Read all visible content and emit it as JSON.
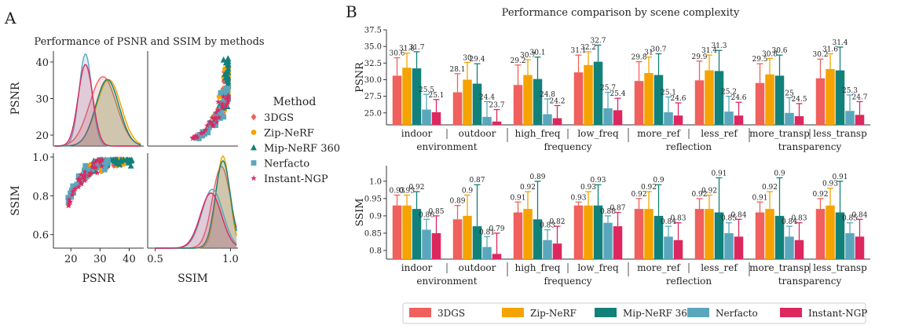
{
  "panel_labels": {
    "a": "A",
    "b": "B"
  },
  "left_panel": {
    "title": "Performance of PSNR and SSIM by methods",
    "legend_title": "Method"
  },
  "right_panel": {
    "title": "Performance comparison by scene complexity"
  },
  "methods": [
    {
      "name": "3DGS",
      "color": "#f0605c",
      "marker": "diamond"
    },
    {
      "name": "Zip-NeRF",
      "color": "#f5a300",
      "marker": "circle"
    },
    {
      "name": "Mip-NeRF 360",
      "color": "#11817a",
      "marker": "triangle"
    },
    {
      "name": "Nerfacto",
      "color": "#5aa7bd",
      "marker": "square"
    },
    {
      "name": "Instant-NGP",
      "color": "#dc285f",
      "marker": "star"
    }
  ],
  "chart_data": [
    {
      "type": "pairplot",
      "id": "A",
      "title": "Performance of PSNR and SSIM by methods",
      "variables": [
        "PSNR",
        "SSIM"
      ],
      "xlim": {
        "PSNR": [
          14,
          45
        ],
        "SSIM": [
          0.45,
          1.05
        ]
      },
      "ticks": {
        "PSNR": [
          20,
          30,
          40
        ],
        "SSIM": [
          0.6,
          0.8,
          1.0
        ],
        "SSIM_x": [
          0.5,
          1.0
        ]
      },
      "tick_labels": {
        "PSNR": [
          "20",
          "30",
          "40"
        ],
        "SSIM": [
          "0.6",
          "0.8",
          "1.0"
        ],
        "SSIM_x": [
          "0.5",
          "1.0"
        ]
      },
      "psnr_density_modes": {
        "3DGS": 31,
        "Zip-NeRF": 33,
        "Mip-NeRF 360": 32.5,
        "Nerfacto": 25,
        "Instant-NGP": 25
      },
      "ssim_density_modes": {
        "3DGS": 0.94,
        "Zip-NeRF": 0.95,
        "Mip-NeRF 360": 0.95,
        "Nerfacto": 0.88,
        "Instant-NGP": 0.87
      },
      "psnr_range": [
        19,
        41
      ],
      "ssim_range": [
        0.56,
        0.99
      ],
      "legend_title": "Method"
    },
    {
      "type": "bar",
      "id": "B-top",
      "ylabel": "PSNR",
      "ylim": [
        23.2,
        37.5
      ],
      "yticks": [
        25.0,
        27.5,
        30.0,
        32.5,
        35.0,
        37.5
      ],
      "ytick_labels": [
        "25.0",
        "27.5",
        "30.0",
        "32.5",
        "35.0",
        "37.5"
      ],
      "categories": [
        "indoor",
        "outdoor",
        "high_freq",
        "low_freq",
        "more_ref",
        "less_ref",
        "more_transp",
        "less_transp"
      ],
      "groups": [
        "environment",
        "frequency",
        "reflection",
        "transparency"
      ],
      "series": [
        {
          "name": "3DGS",
          "values": [
            30.6,
            28.1,
            29.2,
            31.1,
            29.8,
            29.9,
            29.5,
            30.2
          ],
          "errors": [
            2.7,
            2.8,
            3.0,
            2.6,
            2.9,
            2.9,
            2.9,
            2.9
          ]
        },
        {
          "name": "Zip-NeRF",
          "values": [
            31.8,
            30,
            30.7,
            32.2,
            31,
            31.4,
            30.8,
            31.6
          ],
          "errors": [
            2.2,
            2.6,
            2.3,
            2.0,
            2.4,
            2.3,
            2.4,
            2.3
          ]
        },
        {
          "name": "Mip-NeRF 360",
          "values": [
            31.7,
            29.4,
            30.1,
            32.7,
            30.7,
            31.3,
            30.6,
            31.4
          ],
          "errors": [
            2.5,
            3.0,
            3.3,
            2.5,
            3.2,
            3.1,
            3.1,
            3.5
          ]
        },
        {
          "name": "Nerfacto",
          "values": [
            25.5,
            24.4,
            24.8,
            25.7,
            25.1,
            25.2,
            25,
            25.3
          ],
          "errors": [
            2.3,
            2.3,
            2.3,
            2.4,
            2.3,
            2.3,
            2.3,
            2.4
          ]
        },
        {
          "name": "Instant-NGP",
          "values": [
            25.1,
            23.7,
            24.2,
            25.4,
            24.6,
            24.6,
            24.5,
            24.7
          ],
          "errors": [
            1.9,
            1.8,
            1.9,
            1.8,
            1.9,
            2.0,
            1.9,
            2.0
          ]
        }
      ],
      "value_labels": [
        [
          "30.6",
          "28.1",
          "29.2",
          "31.1",
          "29.8",
          "29.9",
          "29.5",
          "30.2"
        ],
        [
          "31.8",
          "30",
          "30.7",
          "32.2",
          "31",
          "31.4",
          "30.8",
          "31.6"
        ],
        [
          "31.7",
          "29.4",
          "30.1",
          "32.7",
          "30.7",
          "31.3",
          "30.6",
          "31.4"
        ],
        [
          "25.5",
          "24.4",
          "24.8",
          "25.7",
          "25.1",
          "25.2",
          "25",
          "25.3"
        ],
        [
          "25.1",
          "23.7",
          "24.2",
          "25.4",
          "24.6",
          "24.6",
          "24.5",
          "24.7"
        ]
      ]
    },
    {
      "type": "bar",
      "id": "B-bottom",
      "ylabel": "SSIM",
      "ylim": [
        0.775,
        1.045
      ],
      "yticks": [
        0.8,
        0.85,
        0.9,
        0.95,
        1.0
      ],
      "ytick_labels": [
        "0.8",
        "0.85",
        "0.9",
        "0.95",
        "1.0"
      ],
      "categories": [
        "indoor",
        "outdoor",
        "high_freq",
        "low_freq",
        "more_ref",
        "less_ref",
        "more_transp",
        "less_transp"
      ],
      "groups": [
        "environment",
        "frequency",
        "reflection",
        "transparency"
      ],
      "series": [
        {
          "name": "3DGS",
          "values": [
            0.93,
            0.89,
            0.91,
            0.93,
            0.92,
            0.92,
            0.91,
            0.92
          ],
          "errors": [
            0.03,
            0.04,
            0.03,
            0.01,
            0.03,
            0.03,
            0.03,
            0.03
          ]
        },
        {
          "name": "Zip-NeRF",
          "values": [
            0.93,
            0.9,
            0.92,
            0.93,
            0.92,
            0.92,
            0.92,
            0.93
          ],
          "errors": [
            0.03,
            0.06,
            0.05,
            0.04,
            0.05,
            0.04,
            0.05,
            0.05
          ]
        },
        {
          "name": "Mip-NeRF 360",
          "values": [
            0.92,
            0.87,
            0.89,
            0.93,
            0.9,
            0.91,
            0.9,
            0.91
          ],
          "errors": [
            0.05,
            0.12,
            0.11,
            0.06,
            0.09,
            0.1,
            0.11,
            0.09
          ]
        },
        {
          "name": "Nerfacto",
          "values": [
            0.86,
            0.81,
            0.83,
            0.88,
            0.84,
            0.85,
            0.84,
            0.85
          ],
          "errors": [
            0.03,
            0.03,
            0.03,
            0.02,
            0.03,
            0.03,
            0.03,
            0.03
          ]
        },
        {
          "name": "Instant-NGP",
          "values": [
            0.85,
            0.79,
            0.82,
            0.87,
            0.83,
            0.84,
            0.83,
            0.84
          ],
          "errors": [
            0.05,
            0.06,
            0.05,
            0.04,
            0.05,
            0.05,
            0.05,
            0.05
          ]
        }
      ],
      "value_labels": [
        [
          "0.93",
          "0.89",
          "0.91",
          "0.93",
          "0.92",
          "0.92",
          "0.91",
          "0.92"
        ],
        [
          "0.93",
          "0.9",
          "0.92",
          "0.93",
          "0.92",
          "0.92",
          "0.92",
          "0.93"
        ],
        [
          "0.92",
          "0.87",
          "0.89",
          "0.93",
          "0.9",
          "0.91",
          "0.9",
          "0.91"
        ],
        [
          "0.86",
          "0.81",
          "0.83",
          "0.88",
          "0.84",
          "0.85",
          "0.84",
          "0.85"
        ],
        [
          "0.85",
          "0.79",
          "0.82",
          "0.87",
          "0.83",
          "0.84",
          "0.83",
          "0.84"
        ]
      ]
    }
  ]
}
